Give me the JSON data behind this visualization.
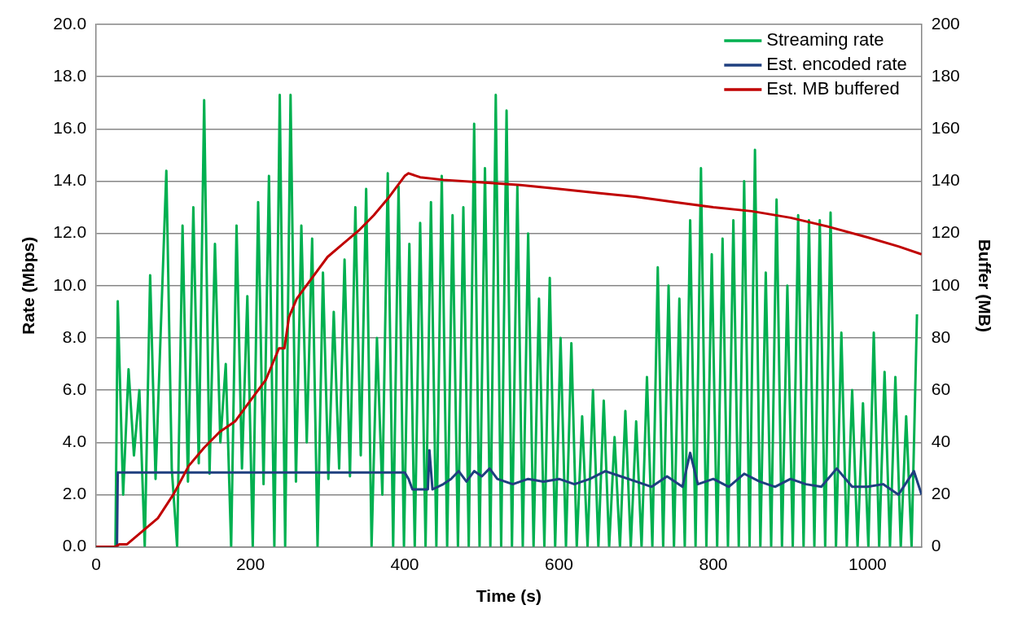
{
  "chart_data": {
    "type": "line",
    "xlabel": "Time (s)",
    "ylabel": "Rate (Mbps)",
    "y2label": "Buffer (MB)",
    "xlim": [
      0,
      1070
    ],
    "xticks": [
      0,
      200,
      400,
      600,
      800,
      1000
    ],
    "ylim": [
      0,
      20
    ],
    "yticks": [
      {
        "value": 0,
        "label": "0.0"
      },
      {
        "value": 2,
        "label": "2.0"
      },
      {
        "value": 4,
        "label": "4.0"
      },
      {
        "value": 6,
        "label": "6.0"
      },
      {
        "value": 8,
        "label": "8.0"
      },
      {
        "value": 10,
        "label": "10.0"
      },
      {
        "value": 12,
        "label": "12.0"
      },
      {
        "value": 14,
        "label": "14.0"
      },
      {
        "value": 16,
        "label": "16.0"
      },
      {
        "value": 18,
        "label": "18.0"
      },
      {
        "value": 20,
        "label": "20.0"
      }
    ],
    "y2lim": [
      0,
      200
    ],
    "y2ticks": [
      0,
      20,
      40,
      60,
      80,
      100,
      120,
      140,
      160,
      180,
      200
    ],
    "grid": "y",
    "legend": "top right",
    "marker": "none",
    "line_style": "solid",
    "series": [
      {
        "name": "Streaming rate",
        "color": "#00b050",
        "x": [
          0,
          25,
          28,
          35,
          42,
          49,
          56,
          63,
          70,
          77,
          84,
          91,
          98,
          105,
          112,
          119,
          126,
          133,
          140,
          147,
          154,
          161,
          168,
          175,
          182,
          189,
          196,
          203,
          210,
          217,
          224,
          231,
          238,
          245,
          252,
          259,
          266,
          273,
          280,
          287,
          294,
          301,
          308,
          315,
          322,
          329,
          336,
          343,
          350,
          357,
          364,
          371,
          378,
          385,
          392,
          399,
          406,
          413,
          420,
          427,
          434,
          441,
          448,
          455,
          462,
          469,
          476,
          483,
          490,
          497,
          504,
          511,
          518,
          525,
          532,
          539,
          546,
          553,
          560,
          567,
          574,
          581,
          588,
          595,
          602,
          609,
          616,
          623,
          630,
          637,
          644,
          651,
          658,
          665,
          672,
          679,
          686,
          693,
          700,
          707,
          714,
          721,
          728,
          735,
          742,
          749,
          756,
          763,
          770,
          777,
          784,
          791,
          798,
          805,
          812,
          819,
          826,
          833,
          840,
          847,
          854,
          861,
          868,
          875,
          882,
          889,
          896,
          903,
          910,
          917,
          924,
          931,
          938,
          945,
          952,
          959,
          966,
          973,
          980,
          987,
          994,
          1001,
          1008,
          1015,
          1022,
          1029,
          1036,
          1043,
          1050,
          1057,
          1064
        ],
        "values": [
          0,
          0,
          9.4,
          2.0,
          6.8,
          3.5,
          6.0,
          0,
          10.4,
          2.6,
          8.5,
          14.4,
          3.0,
          0,
          12.3,
          2.5,
          13.0,
          3.2,
          17.1,
          2.8,
          11.6,
          4.0,
          7.0,
          0,
          12.3,
          3.0,
          9.6,
          0,
          13.2,
          2.4,
          14.2,
          0,
          17.3,
          0,
          17.3,
          2.5,
          12.3,
          4.0,
          11.8,
          0,
          10.5,
          2.6,
          9.0,
          3.0,
          11.0,
          2.7,
          13.0,
          3.5,
          13.7,
          0,
          8.0,
          2.0,
          14.3,
          0,
          13.8,
          0,
          11.6,
          0,
          12.4,
          0,
          13.2,
          0,
          14.2,
          0,
          12.7,
          0,
          13.0,
          0,
          16.2,
          0,
          14.5,
          0,
          17.3,
          0,
          16.7,
          0,
          13.8,
          0,
          12.0,
          0,
          9.5,
          0,
          10.3,
          0,
          8.0,
          0,
          7.8,
          0,
          5.0,
          0,
          6.0,
          0,
          5.6,
          0,
          4.2,
          0,
          5.2,
          0,
          4.8,
          0,
          6.5,
          0,
          10.7,
          0,
          10.0,
          0,
          9.5,
          0,
          12.5,
          0,
          14.5,
          0,
          11.2,
          0,
          11.8,
          0,
          12.5,
          0,
          14.0,
          0,
          15.2,
          0,
          10.5,
          0,
          13.3,
          0,
          10.0,
          0,
          12.7,
          0,
          12.5,
          0,
          12.5,
          0,
          12.8,
          0,
          8.2,
          0,
          6.0,
          0,
          5.5,
          0,
          8.2,
          0,
          6.7,
          0,
          6.5,
          0,
          5.0,
          0,
          8.9
        ]
      },
      {
        "name": "Est. encoded rate",
        "color": "#1f3f7f",
        "x": [
          0,
          27,
          28,
          400,
          405,
          410,
          430,
          432,
          436,
          450,
          460,
          470,
          480,
          490,
          500,
          510,
          520,
          540,
          560,
          580,
          600,
          620,
          640,
          660,
          680,
          700,
          720,
          740,
          760,
          770,
          780,
          800,
          820,
          840,
          860,
          880,
          900,
          920,
          940,
          960,
          980,
          1000,
          1020,
          1040,
          1060,
          1070
        ],
        "values": [
          0,
          0,
          2.85,
          2.85,
          2.6,
          2.2,
          2.2,
          3.7,
          2.2,
          2.4,
          2.6,
          2.9,
          2.5,
          2.9,
          2.7,
          3.0,
          2.6,
          2.4,
          2.6,
          2.5,
          2.6,
          2.4,
          2.6,
          2.9,
          2.7,
          2.5,
          2.3,
          2.7,
          2.3,
          3.6,
          2.4,
          2.6,
          2.3,
          2.8,
          2.5,
          2.3,
          2.6,
          2.4,
          2.3,
          3.0,
          2.3,
          2.3,
          2.4,
          2.0,
          2.9,
          2.0
        ]
      },
      {
        "name": "Est. MB buffered",
        "color": "#c00000",
        "axis": "y2",
        "x": [
          0,
          25,
          30,
          40,
          60,
          80,
          100,
          120,
          140,
          160,
          180,
          200,
          220,
          237,
          244,
          250,
          260,
          280,
          300,
          320,
          340,
          360,
          380,
          400,
          405,
          420,
          450,
          500,
          550,
          600,
          650,
          700,
          750,
          800,
          850,
          900,
          950,
          1000,
          1040,
          1070
        ],
        "values": [
          0,
          0,
          1,
          1,
          6,
          11,
          20,
          31,
          38,
          44,
          48,
          56,
          64,
          76,
          76,
          88,
          95,
          103,
          111,
          116,
          121,
          127,
          134,
          142,
          143,
          141.5,
          140.5,
          139.5,
          138.5,
          137,
          135.5,
          134,
          132,
          130,
          128.5,
          126,
          122.5,
          118.5,
          115,
          112
        ]
      }
    ]
  }
}
